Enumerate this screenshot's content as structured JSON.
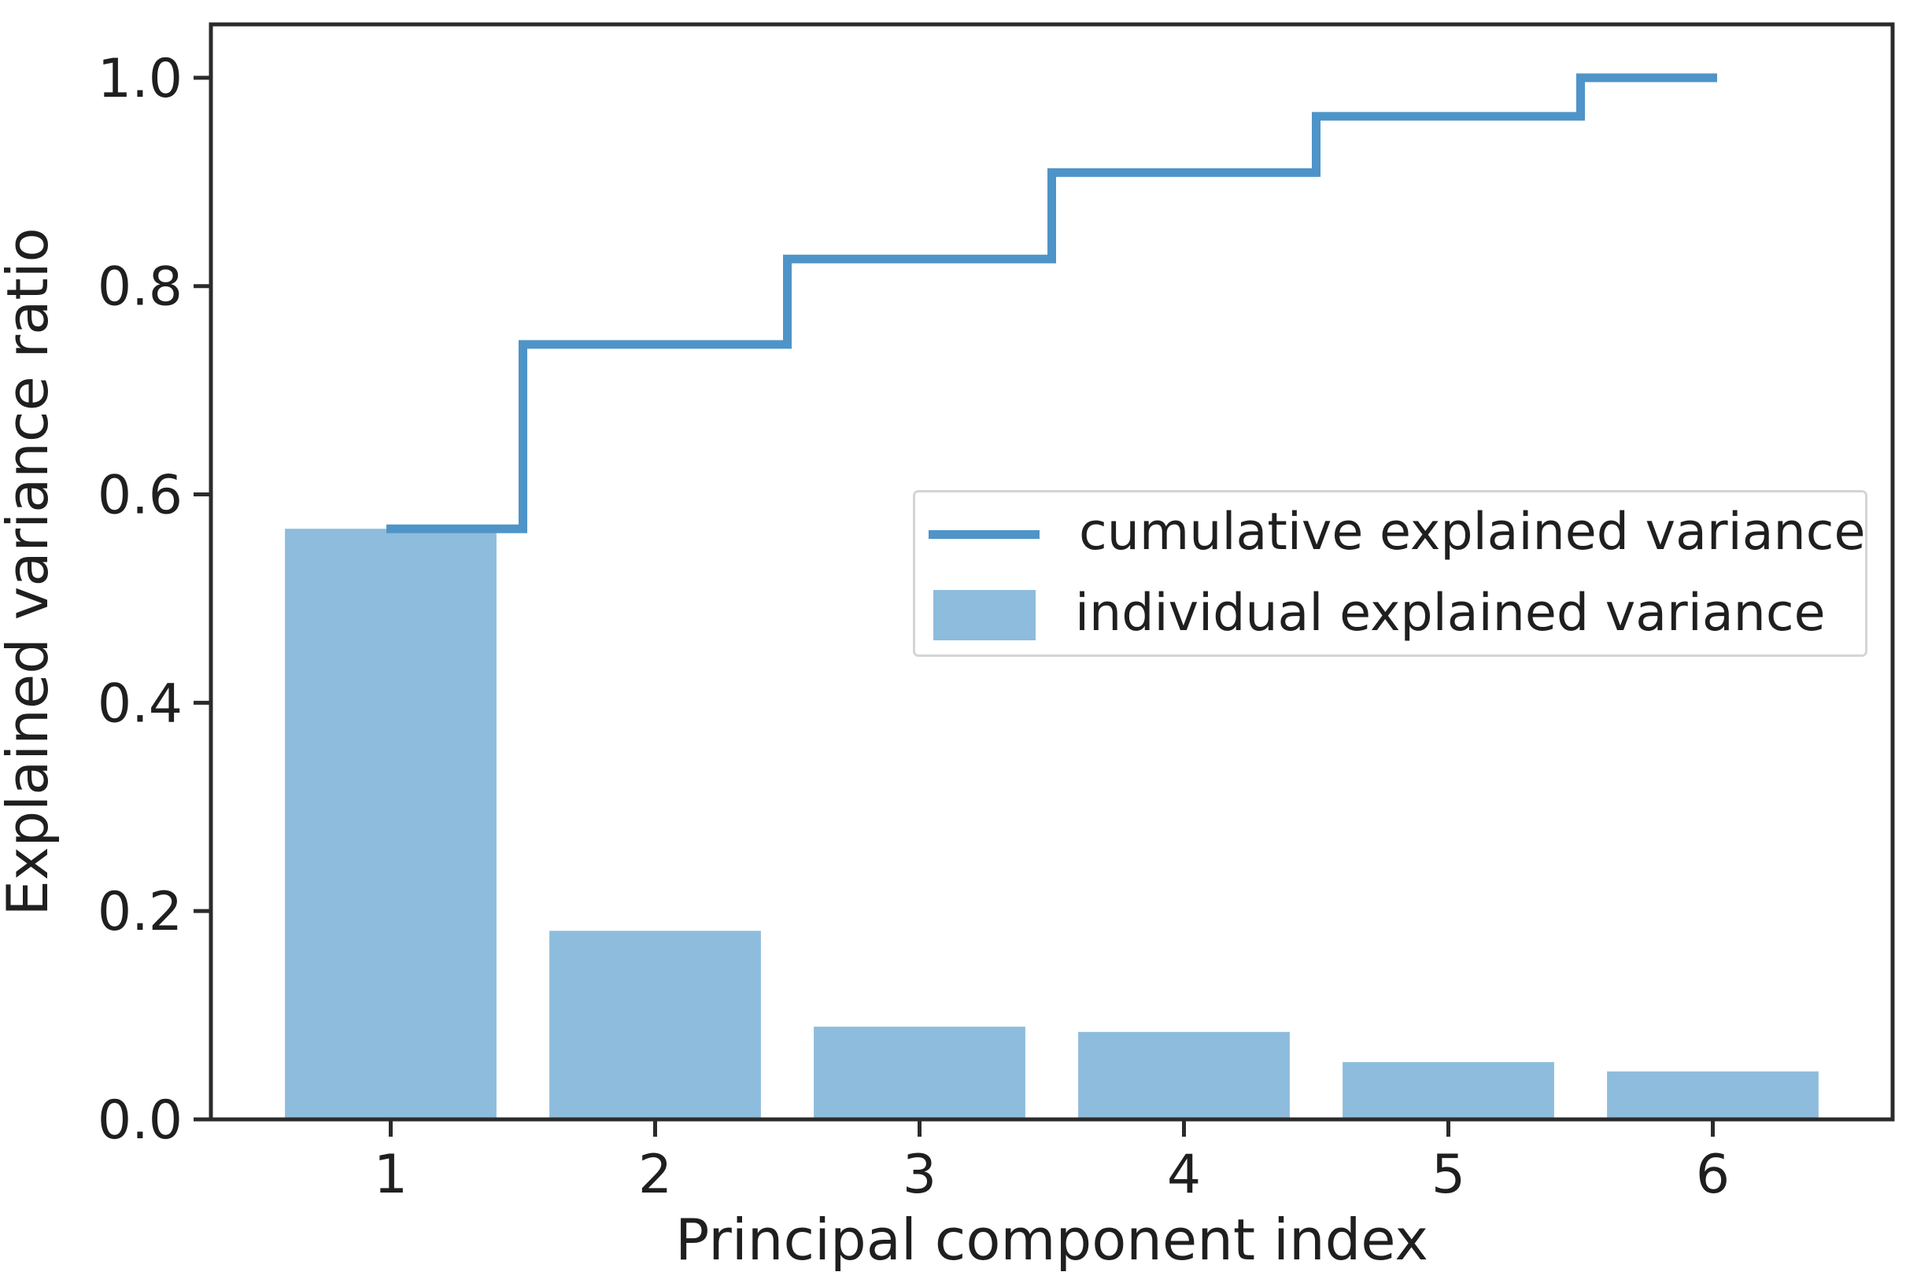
{
  "figure": {
    "xlabel": "Principal component index",
    "ylabel": "Explained variance ratio"
  },
  "legend": {
    "items": [
      {
        "label": "cumulative explained variance",
        "swatch": "line"
      },
      {
        "label": "individual explained variance",
        "swatch": "patch"
      }
    ]
  },
  "colors": {
    "line": "#4e94c8",
    "bar": "#8ebcdc",
    "axis": "#2b2b2b",
    "text": "#1f1f1f",
    "legend_border": "#d5d5d5",
    "background": "#ffffff"
  },
  "chart_data": {
    "type": "bar",
    "title": "",
    "categories": [
      1,
      2,
      3,
      4,
      5,
      6
    ],
    "series": [
      {
        "name": "individual explained variance",
        "kind": "bar",
        "values": [
          0.567,
          0.181,
          0.089,
          0.084,
          0.055,
          0.046
        ]
      },
      {
        "name": "cumulative explained variance",
        "kind": "step",
        "step_where": "mid",
        "values": [
          0.567,
          0.744,
          0.826,
          0.909,
          0.963,
          1.0
        ]
      }
    ],
    "xlabel": "Principal component index",
    "ylabel": "Explained variance ratio",
    "xlim": [
      0.32,
      6.68
    ],
    "ylim": [
      0,
      1.0513
    ],
    "bar_width": 0.8,
    "grid": false,
    "legend_position": "center right",
    "xticks": {
      "values": [
        1,
        2,
        3,
        4,
        5,
        6
      ],
      "labels": [
        "1",
        "2",
        "3",
        "4",
        "5",
        "6"
      ]
    },
    "yticks": {
      "values": [
        0.0,
        0.2,
        0.4,
        0.6,
        0.8,
        1.0
      ],
      "labels": [
        "0.0",
        "0.2",
        "0.4",
        "0.6",
        "0.8",
        "1.0"
      ]
    }
  }
}
